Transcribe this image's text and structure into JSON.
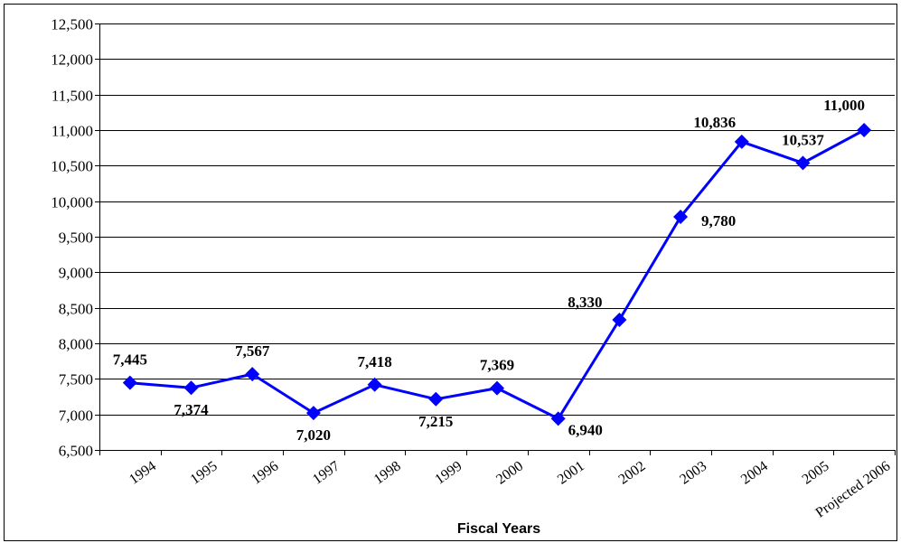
{
  "chart_data": {
    "type": "line",
    "title": "",
    "xlabel": "Fiscal Years",
    "ylabel": "",
    "ylim": [
      6500,
      12500
    ],
    "ytick_step": 500,
    "ytick_labels": [
      "6,500",
      "7,000",
      "7,500",
      "8,000",
      "8,500",
      "9,000",
      "9,500",
      "10,000",
      "10,500",
      "11,000",
      "11,500",
      "12,000",
      "12,500"
    ],
    "categories": [
      "1994",
      "1995",
      "1996",
      "1997",
      "1998",
      "1999",
      "2000",
      "2001",
      "2002",
      "2003",
      "2004",
      "2005",
      "Projected 2006"
    ],
    "values": [
      7445,
      7374,
      7567,
      7020,
      7418,
      7215,
      7369,
      6940,
      8330,
      9780,
      10836,
      10537,
      11000
    ],
    "value_labels": [
      "7,445",
      "7,374",
      "7,567",
      "7,020",
      "7,418",
      "7,215",
      "7,369",
      "6,940",
      "8,330",
      "9,780",
      "10,836",
      "10,537",
      "11,000"
    ],
    "grid": true,
    "legend": "none",
    "series_color": "#0000FF"
  }
}
